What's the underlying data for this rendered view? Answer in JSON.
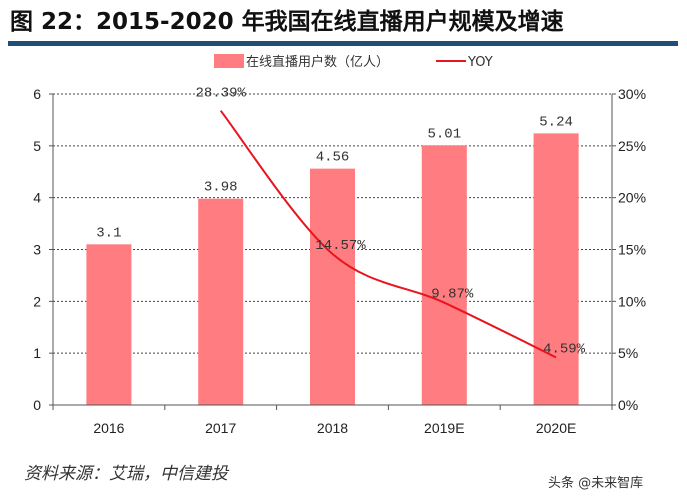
{
  "title": "图 22：2015-2020 年我国在线直播用户规模及增速",
  "source": "资料来源：艾瑞，中信建投",
  "watermark": "头条 @未来智库",
  "colors": {
    "bar": "#FF7C80",
    "line": "#E8141E",
    "rule": "#1F4E79"
  },
  "chart_data": {
    "type": "bar+line",
    "categories": [
      "2016",
      "2017",
      "2018",
      "2019E",
      "2020E"
    ],
    "series": [
      {
        "name": "在线直播用户数（亿人）",
        "type": "bar",
        "axis": "left",
        "values": [
          3.1,
          3.98,
          4.56,
          5.01,
          5.24
        ],
        "labels": [
          "3.1",
          "3.98",
          "4.56",
          "5.01",
          "5.24"
        ]
      },
      {
        "name": "YOY",
        "type": "line",
        "axis": "right",
        "values": [
          null,
          28.39,
          14.57,
          9.87,
          4.59
        ],
        "labels": [
          "",
          "28.39%",
          "14.57%",
          "9.87%",
          "4.59%"
        ]
      }
    ],
    "yleft": {
      "lim": [
        0,
        6
      ],
      "ticks": [
        "0",
        "1",
        "2",
        "3",
        "4",
        "5",
        "6"
      ]
    },
    "yright": {
      "lim": [
        0,
        30
      ],
      "ticks": [
        "0%",
        "5%",
        "10%",
        "15%",
        "20%",
        "25%",
        "30%"
      ]
    },
    "grid": "horizontal dashed",
    "legend": "top-center"
  }
}
